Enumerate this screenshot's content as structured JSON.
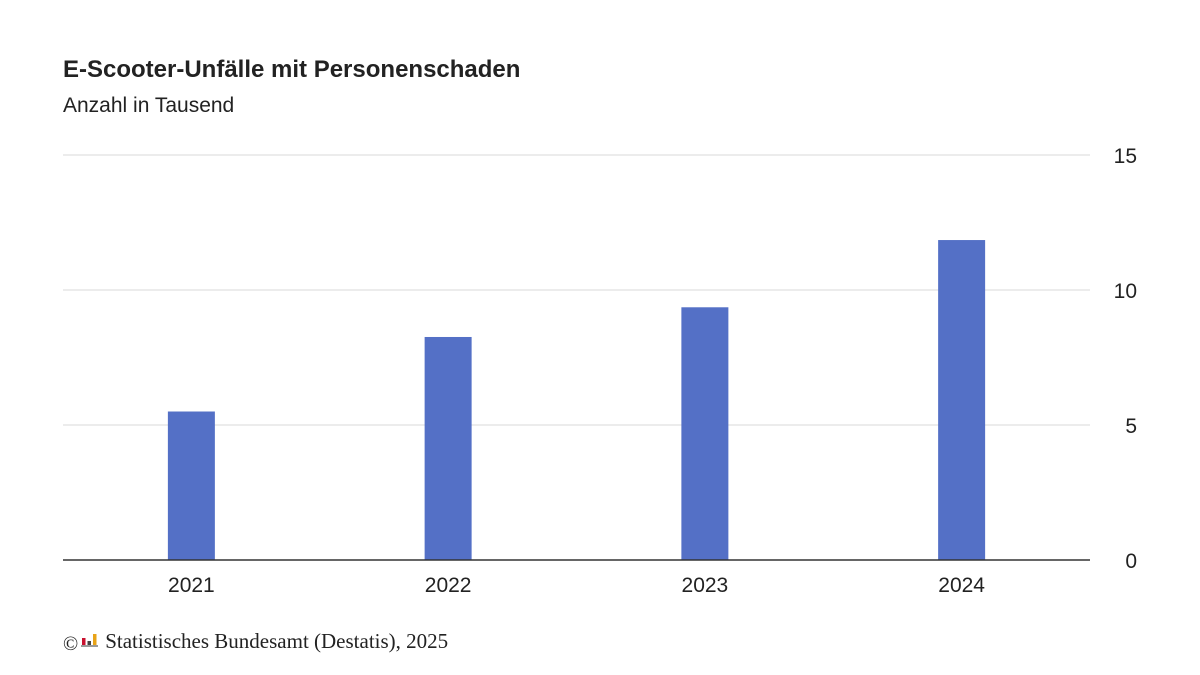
{
  "colors": {
    "bar": "#5470c6",
    "grid": "#d9d9d9",
    "axis": "#333333",
    "text": "#222222"
  },
  "chart_data": {
    "type": "bar",
    "title": "E-Scooter-Unfälle mit Personenschaden",
    "subtitle": "Anzahl in Tausend",
    "categories": [
      "2021",
      "2022",
      "2023",
      "2024"
    ],
    "values": [
      5.5,
      8.26,
      9.36,
      11.85
    ],
    "ylim": [
      0,
      15
    ],
    "yticks": [
      "0",
      "5",
      "10",
      "15"
    ],
    "grid": true,
    "y_axis_position": "right"
  },
  "footer": {
    "copyright_symbol": "©",
    "logo_icon": "destatis-logo-icon",
    "source": "Statistisches Bundesamt (Destatis), 2025"
  }
}
